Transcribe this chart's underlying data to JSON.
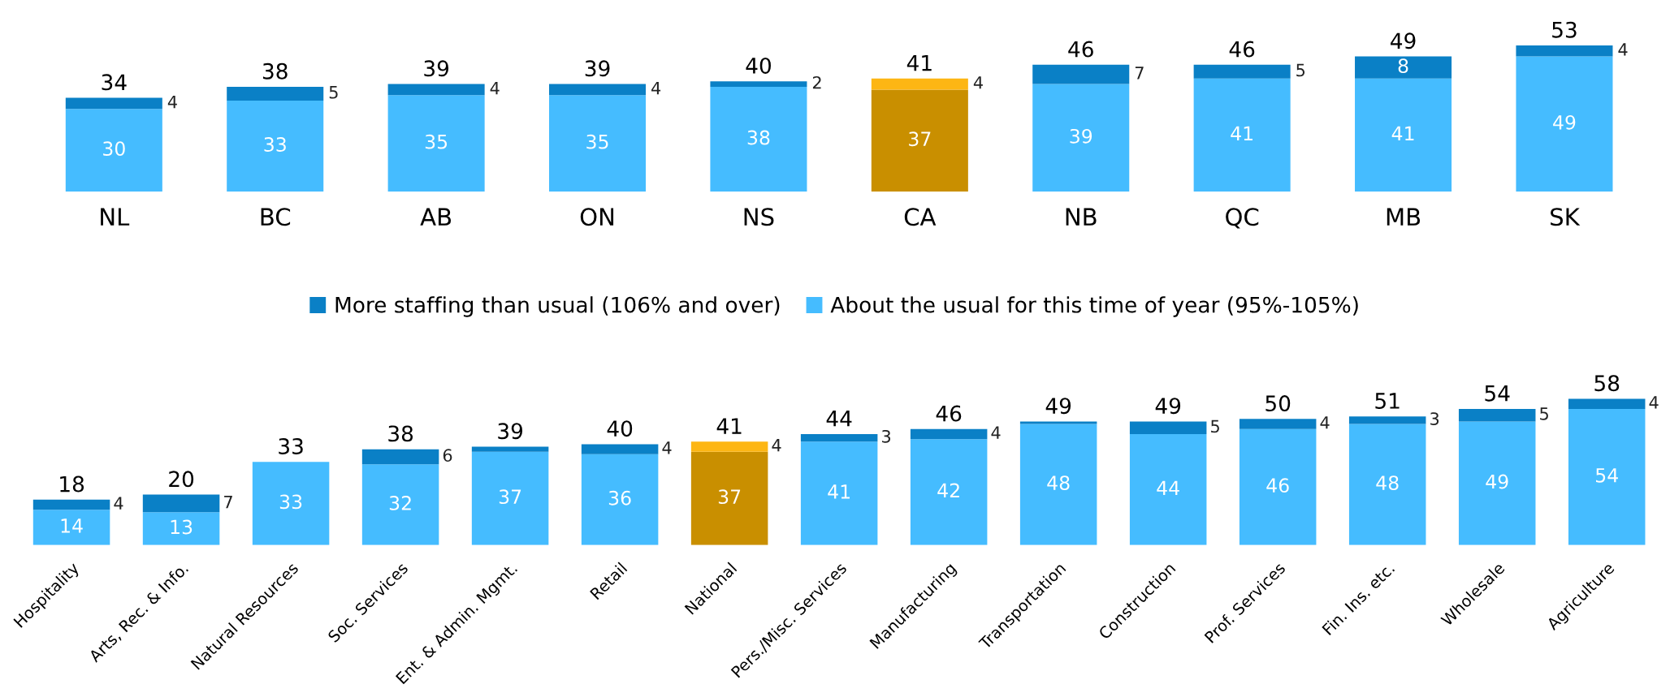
{
  "chart_data": [
    {
      "type": "bar",
      "stacked": true,
      "legend": "bottom",
      "data_labels": false,
      "categories": [
        "NL",
        "BC",
        "AB",
        "ON",
        "NS",
        "CA",
        "NB",
        "QC",
        "MB",
        "SK"
      ],
      "series": [
        {
          "name": "About the usual for this time of year (95%-105%)",
          "color": "#45bcff",
          "colors": [
            "#45bcff",
            "#45bcff",
            "#45bcff",
            "#45bcff",
            "#45bcff",
            "#c98f00",
            "#45bcff",
            "#45bcff",
            "#45bcff",
            "#45bcff"
          ],
          "values": [
            30,
            33,
            35,
            35,
            38,
            37,
            39,
            41,
            41,
            49
          ],
          "value_labels": [
            "30",
            "33",
            "35",
            "35",
            "38",
            "37",
            "39",
            "41",
            "41",
            "49"
          ]
        },
        {
          "name": "More staffing than usual (106% and over)",
          "color": "#0a80c6",
          "colors": [
            "#0a80c6",
            "#0a80c6",
            "#0a80c6",
            "#0a80c6",
            "#0a80c6",
            "#fdb614",
            "#0a80c6",
            "#0a80c6",
            "#0a80c6",
            "#0a80c6"
          ],
          "values": [
            4,
            5,
            4,
            4,
            2,
            4,
            7,
            5,
            8,
            4
          ],
          "value_labels": [
            "4",
            "5",
            "4",
            "4",
            "2",
            "4",
            "7",
            "5",
            "8",
            "4"
          ]
        }
      ],
      "totals": [
        "34",
        "38",
        "39",
        "39",
        "40",
        "41",
        "46",
        "46",
        "49",
        "53"
      ]
    },
    {
      "type": "bar",
      "stacked": true,
      "data_labels": false,
      "categories": [
        "Hospitality",
        "Arts, Rec. & Info.",
        "Natural Resources",
        "Soc. Services",
        "Ent. & Admin. Mgmt.",
        "Retail",
        "National",
        "Pers./Misc. Services",
        "Manufacturing",
        "Transportation",
        "Construction",
        "Prof. Services",
        "Fin. Ins. etc.",
        "Wholesale",
        "Agriculture"
      ],
      "series": [
        {
          "color": "#45bcff",
          "colors": [
            "#45bcff",
            "#45bcff",
            "#45bcff",
            "#45bcff",
            "#45bcff",
            "#45bcff",
            "#c98f00",
            "#45bcff",
            "#45bcff",
            "#45bcff",
            "#45bcff",
            "#45bcff",
            "#45bcff",
            "#45bcff",
            "#45bcff"
          ],
          "values": [
            14,
            13,
            33,
            32,
            37,
            36,
            37,
            41,
            42,
            48,
            44,
            46,
            48,
            49,
            54
          ],
          "value_labels": [
            "14",
            "13",
            "33",
            "32",
            "37",
            "36",
            "37",
            "41",
            "42",
            "48",
            "44",
            "46",
            "48",
            "49",
            "54"
          ]
        },
        {
          "color": "#0a80c6",
          "colors": [
            "#0a80c6",
            "#0a80c6",
            "#0a80c6",
            "#0a80c6",
            "#0a80c6",
            "#0a80c6",
            "#fdb614",
            "#0a80c6",
            "#0a80c6",
            "#0a80c6",
            "#0a80c6",
            "#0a80c6",
            "#0a80c6",
            "#0a80c6",
            "#0a80c6"
          ],
          "values": [
            4,
            7,
            0,
            6,
            2,
            4,
            4,
            3,
            4,
            1,
            5,
            4,
            3,
            5,
            4
          ],
          "value_labels": [
            "4",
            "7",
            null,
            "6",
            null,
            "4",
            "4",
            "3",
            "4",
            null,
            "5",
            "4",
            "3",
            "5",
            "4"
          ]
        }
      ],
      "totals": [
        "18",
        "20",
        "33",
        "38",
        "39",
        "40",
        "41",
        "44",
        "46",
        "49",
        "49",
        "50",
        "51",
        "54",
        "58"
      ]
    }
  ]
}
